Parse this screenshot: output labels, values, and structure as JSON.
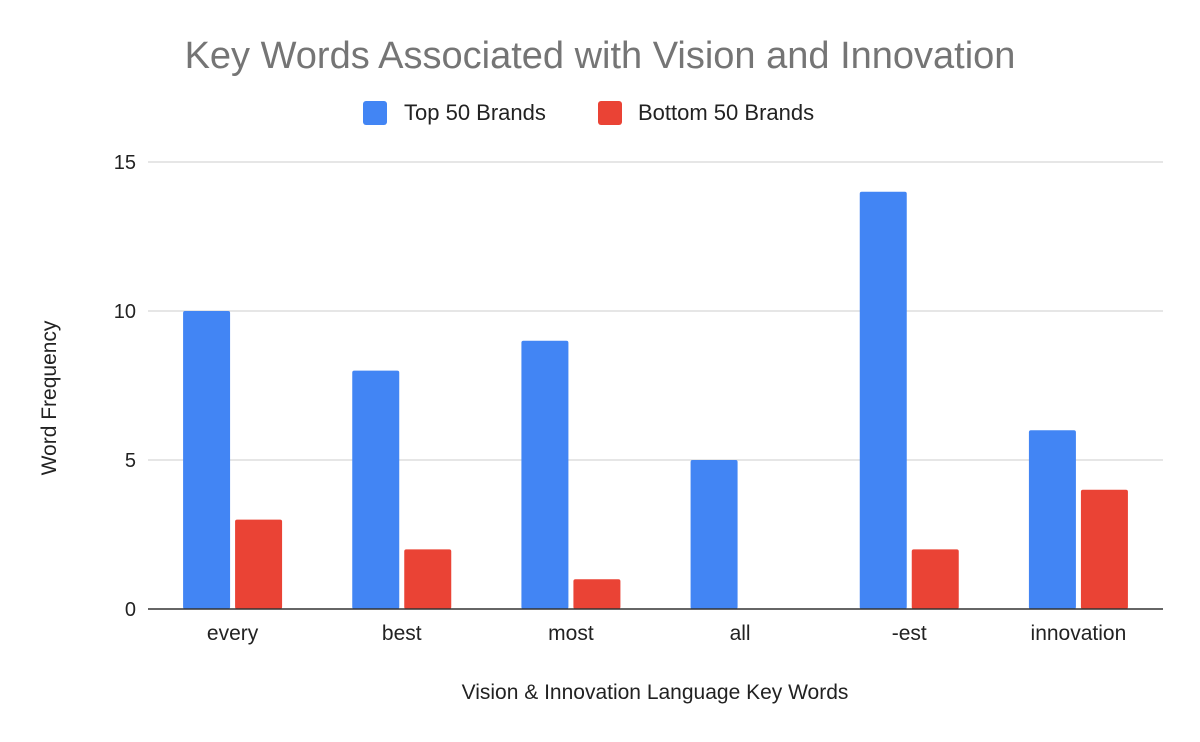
{
  "chart_data": {
    "type": "bar",
    "title": "Key Words Associated with Vision and Innovation",
    "xlabel": "Vision & Innovation Language Key Words",
    "ylabel": "Word Frequency",
    "categories": [
      "every",
      "best",
      "most",
      "all",
      "-est",
      "innovation"
    ],
    "series": [
      {
        "name": "Top 50 Brands",
        "color": "#4285F4",
        "values": [
          10,
          8,
          9,
          5,
          14,
          6
        ]
      },
      {
        "name": "Bottom 50 Brands",
        "color": "#EA4335",
        "values": [
          3,
          2,
          1,
          0,
          2,
          4
        ]
      }
    ],
    "ylim": [
      0,
      15
    ],
    "yticks": [
      "0",
      "5",
      "10",
      "15"
    ],
    "grid": true,
    "legend_position": "top-center"
  }
}
